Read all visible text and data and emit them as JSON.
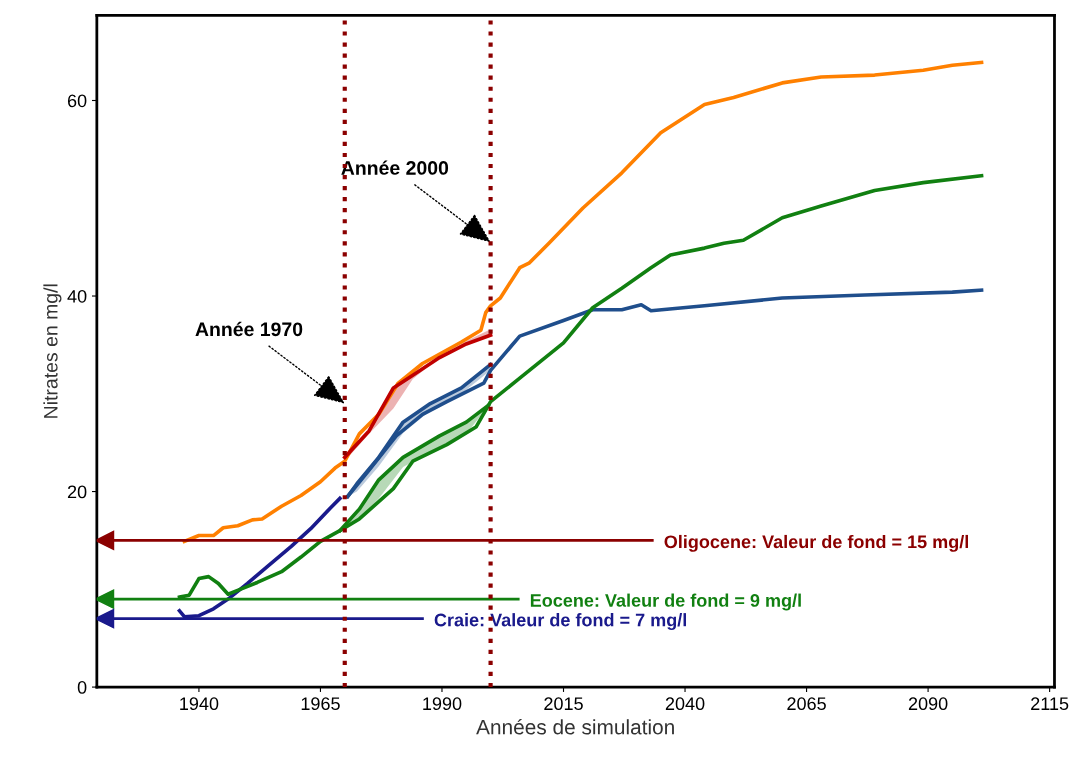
{
  "chart_data": {
    "type": "line",
    "xlabel": "Années de simulation",
    "ylabel": "Nitrates en mg/l",
    "xlim": [
      1919,
      2116
    ],
    "ylim": [
      0,
      68.7
    ],
    "xticks": [
      1940,
      1965,
      1990,
      2015,
      2040,
      2065,
      2090,
      2115
    ],
    "yticks": [
      0,
      20,
      40,
      60
    ],
    "grid": false,
    "marker": "none",
    "line_style": "solid",
    "series": [
      {
        "color": "#ff8000",
        "x": [
          1937,
          1940,
          1943,
          1945,
          1948,
          1951,
          1953,
          1957,
          1961,
          1965,
          1968,
          1970,
          1973,
          1977,
          1981,
          1986,
          1990,
          1994,
          1998,
          1999,
          2000,
          2002,
          2006,
          2008,
          2012,
          2019,
          2027,
          2035,
          2044,
          2050,
          2060,
          2068,
          2079,
          2089,
          2095,
          2101
        ],
        "values": [
          14.9,
          15.5,
          15.5,
          16.3,
          16.5,
          17.1,
          17.2,
          18.5,
          19.6,
          21.0,
          22.4,
          23.1,
          25.9,
          27.9,
          31.1,
          33.1,
          34.2,
          35.3,
          36.5,
          38.3,
          39.0,
          39.8,
          42.9,
          43.4,
          45.4,
          49.0,
          52.6,
          56.7,
          59.6,
          60.3,
          61.8,
          62.4,
          62.6,
          63.1,
          63.6,
          63.9
        ]
      },
      {
        "color": "#c00000",
        "x": [
          1970,
          1975,
          1980,
          1984,
          1989.5,
          1995,
          2000
        ],
        "values": [
          23.5,
          26.2,
          30.6,
          31.9,
          33.7,
          35.1,
          36.0
        ],
        "lower": [
          23.1,
          25.9,
          28.5,
          31.5,
          33.7,
          35.4,
          36.6
        ],
        "upper": [
          23.5,
          26.2,
          30.6,
          31.9,
          33.7,
          35.1,
          36.0
        ]
      },
      {
        "color": "#1a1a8c",
        "x": [
          1936,
          1937,
          1940,
          1943,
          1946,
          1950,
          1954,
          1959,
          1963,
          1967,
          1969
        ],
        "values": [
          7.8,
          7.2,
          7.3,
          8.0,
          9.0,
          10.6,
          12.3,
          14.4,
          16.2,
          18.3,
          19.3
        ]
      },
      {
        "color": "#1f4e8c",
        "x": [
          1970.6,
          1975,
          1980.6,
          1986,
          1991,
          1998.6,
          2000,
          2006,
          2015,
          2021,
          2027,
          2031,
          2033,
          2044,
          2060,
          2077,
          2095,
          2101
        ],
        "values": [
          19.5,
          22.2,
          25.7,
          27.9,
          29.2,
          31.1,
          32.4,
          35.9,
          37.5,
          38.6,
          38.6,
          39.1,
          38.5,
          39.0,
          39.8,
          40.1,
          40.4,
          40.6
        ]
      },
      {
        "color": "#1f4e8c",
        "x": [
          1970.6,
          1972.5,
          1977,
          1982,
          1987.6,
          1994,
          2000
        ],
        "values": [
          19.5,
          20.8,
          23.5,
          27.1,
          29.0,
          30.6,
          33.0
        ],
        "lower": [
          19.5,
          20.0,
          22.6,
          26.0,
          28.3,
          30.0,
          32.4
        ],
        "upper": [
          19.5,
          20.8,
          23.5,
          27.1,
          29.0,
          30.6,
          33.0
        ]
      },
      {
        "color": "#118011",
        "x": [
          1936,
          1938,
          1940,
          1942,
          1944,
          1946,
          1949,
          1952,
          1957,
          1961,
          1965,
          1969,
          1973,
          1980,
          1984,
          1991,
          1997,
          2000,
          2006,
          2015,
          2021,
          2027,
          2033,
          2037,
          2044,
          2048,
          2052,
          2060,
          2068,
          2079,
          2089,
          2101
        ],
        "values": [
          9.2,
          9.4,
          11.1,
          11.3,
          10.6,
          9.5,
          10.1,
          10.7,
          11.8,
          13.3,
          14.9,
          16.0,
          17.2,
          20.3,
          23.1,
          24.8,
          26.6,
          29.2,
          31.6,
          35.2,
          38.8,
          40.8,
          42.9,
          44.2,
          44.9,
          45.4,
          45.7,
          48.0,
          49.2,
          50.8,
          51.6,
          52.3
        ]
      },
      {
        "color": "#118011",
        "x": [
          1969,
          1973,
          1977,
          1982,
          1989.5,
          1995,
          1999.5
        ],
        "values": [
          16.0,
          18.2,
          21.2,
          23.5,
          25.7,
          27.1,
          28.8
        ],
        "lower": [
          16.0,
          17.2,
          19.3,
          22.5,
          24.5,
          25.9,
          28.7
        ],
        "upper": [
          16.0,
          18.2,
          21.2,
          23.5,
          25.7,
          27.1,
          28.8
        ]
      }
    ],
    "ref_lines": [
      {
        "axis": "y",
        "value": 15,
        "label": "Oligocene: Valeur de fond = 15 mg/l",
        "color": "#8b0000",
        "line_style": "solid"
      },
      {
        "axis": "y",
        "value": 9,
        "label": "Eocene: Valeur de fond = 9 mg/l",
        "color": "#118011",
        "line_style": "solid"
      },
      {
        "axis": "y",
        "value": 7,
        "label": "Craie: Valeur de fond = 7 mg/l",
        "color": "#1a1a8c",
        "line_style": "solid"
      },
      {
        "axis": "x",
        "value": 1970,
        "color": "#8b0000",
        "line_style": "dotted"
      },
      {
        "axis": "x",
        "value": 2000,
        "color": "#8b0000",
        "line_style": "dotted"
      }
    ],
    "annotations": [
      {
        "text": "Année 1970",
        "x": 1970,
        "y": 29
      },
      {
        "text": "Année 2000",
        "x": 2000,
        "y": 45.5
      }
    ]
  }
}
